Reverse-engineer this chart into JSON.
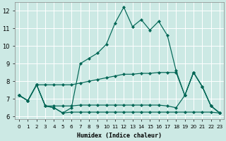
{
  "xlabel": "Humidex (Indice chaleur)",
  "background_color": "#cce9e4",
  "line_color": "#006655",
  "grid_color": "#ffffff",
  "xlim": [
    -0.5,
    23.5
  ],
  "ylim": [
    5.85,
    12.5
  ],
  "xticks": [
    0,
    1,
    2,
    3,
    4,
    5,
    6,
    7,
    8,
    9,
    10,
    11,
    12,
    13,
    14,
    15,
    16,
    17,
    18,
    19,
    20,
    21,
    22,
    23
  ],
  "yticks": [
    6,
    7,
    8,
    9,
    10,
    11,
    12
  ],
  "curve_main": {
    "x": [
      0,
      1,
      2,
      3,
      4,
      5,
      6,
      7,
      8,
      9,
      10,
      11,
      12,
      13,
      14,
      15,
      16,
      17,
      18,
      19,
      20,
      21,
      22,
      23
    ],
    "y": [
      7.2,
      6.9,
      7.8,
      6.6,
      6.5,
      6.2,
      6.5,
      9.0,
      9.3,
      9.6,
      10.1,
      11.3,
      12.2,
      11.1,
      11.5,
      10.9,
      11.4,
      10.6,
      8.6,
      7.2,
      8.5,
      7.7,
      6.6,
      6.2
    ]
  },
  "curve_upper": {
    "x": [
      0,
      1,
      2,
      3,
      4,
      5,
      6,
      7,
      8,
      9,
      10,
      11,
      12,
      13,
      14,
      15,
      16,
      17,
      18,
      19,
      20,
      21,
      22,
      23
    ],
    "y": [
      7.2,
      6.9,
      7.8,
      7.8,
      7.8,
      7.8,
      7.8,
      7.9,
      8.0,
      8.1,
      8.2,
      8.3,
      8.4,
      8.4,
      8.45,
      8.45,
      8.5,
      8.5,
      8.5,
      7.2,
      8.5,
      7.7,
      6.6,
      6.2
    ]
  },
  "curve_mid": {
    "x": [
      0,
      1,
      2,
      3,
      4,
      5,
      6,
      7,
      8,
      9,
      10,
      11,
      12,
      13,
      14,
      15,
      16,
      17,
      18,
      19,
      20,
      21,
      22,
      23
    ],
    "y": [
      7.2,
      6.9,
      7.8,
      6.6,
      6.6,
      6.6,
      6.6,
      6.65,
      6.65,
      6.65,
      6.65,
      6.65,
      6.65,
      6.65,
      6.65,
      6.65,
      6.65,
      6.6,
      6.5,
      7.2,
      8.5,
      7.7,
      6.6,
      6.2
    ]
  },
  "curve_low": {
    "x": [
      0,
      1,
      2,
      3,
      4,
      5,
      6,
      7,
      8,
      9,
      10,
      11,
      12,
      13,
      14,
      15,
      16,
      17,
      18,
      19,
      20,
      21,
      22,
      23
    ],
    "y": [
      7.2,
      6.9,
      7.8,
      6.6,
      6.5,
      6.2,
      6.25,
      6.25,
      6.25,
      6.25,
      6.25,
      6.25,
      6.25,
      6.25,
      6.25,
      6.25,
      6.25,
      6.25,
      6.25,
      6.25,
      6.25,
      6.25,
      6.25,
      6.2
    ]
  }
}
